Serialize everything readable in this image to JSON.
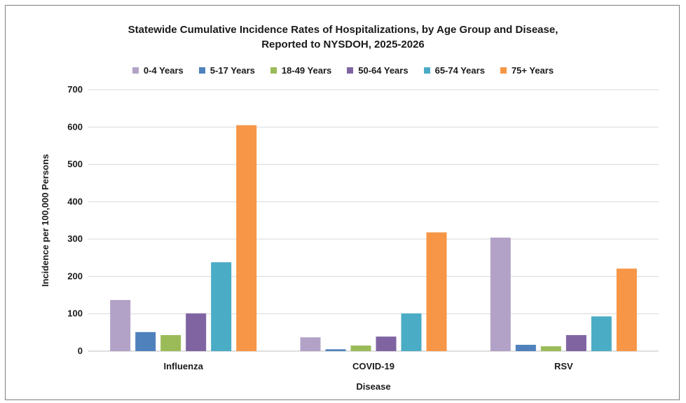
{
  "chart_data": {
    "type": "bar",
    "title": "Statewide Cumulative Incidence Rates of Hospitalizations, by Age Group and Disease,",
    "subtitle": "Reported to NYSDOH, 2025-2026",
    "xlabel": "Disease",
    "ylabel": "Incidence per 100,000 Persons",
    "ylim": [
      0,
      700
    ],
    "yticks": [
      0,
      100,
      200,
      300,
      400,
      500,
      600,
      700
    ],
    "grid": true,
    "legend_position": "top",
    "categories": [
      "Influenza",
      "COVID-19",
      "RSV"
    ],
    "series": [
      {
        "name": "0-4 Years",
        "color": "#b3a2c7",
        "values": [
          137,
          37,
          304
        ]
      },
      {
        "name": "5-17 Years",
        "color": "#4f81bd",
        "values": [
          51,
          5,
          17
        ]
      },
      {
        "name": "18-49 Years",
        "color": "#9bbb59",
        "values": [
          43,
          15,
          13
        ]
      },
      {
        "name": "50-64 Years",
        "color": "#8064a2",
        "values": [
          101,
          39,
          43
        ]
      },
      {
        "name": "65-74 Years",
        "color": "#4bacc6",
        "values": [
          238,
          101,
          93
        ]
      },
      {
        "name": "75+ Years",
        "color": "#f79646",
        "values": [
          605,
          318,
          221
        ]
      }
    ]
  }
}
